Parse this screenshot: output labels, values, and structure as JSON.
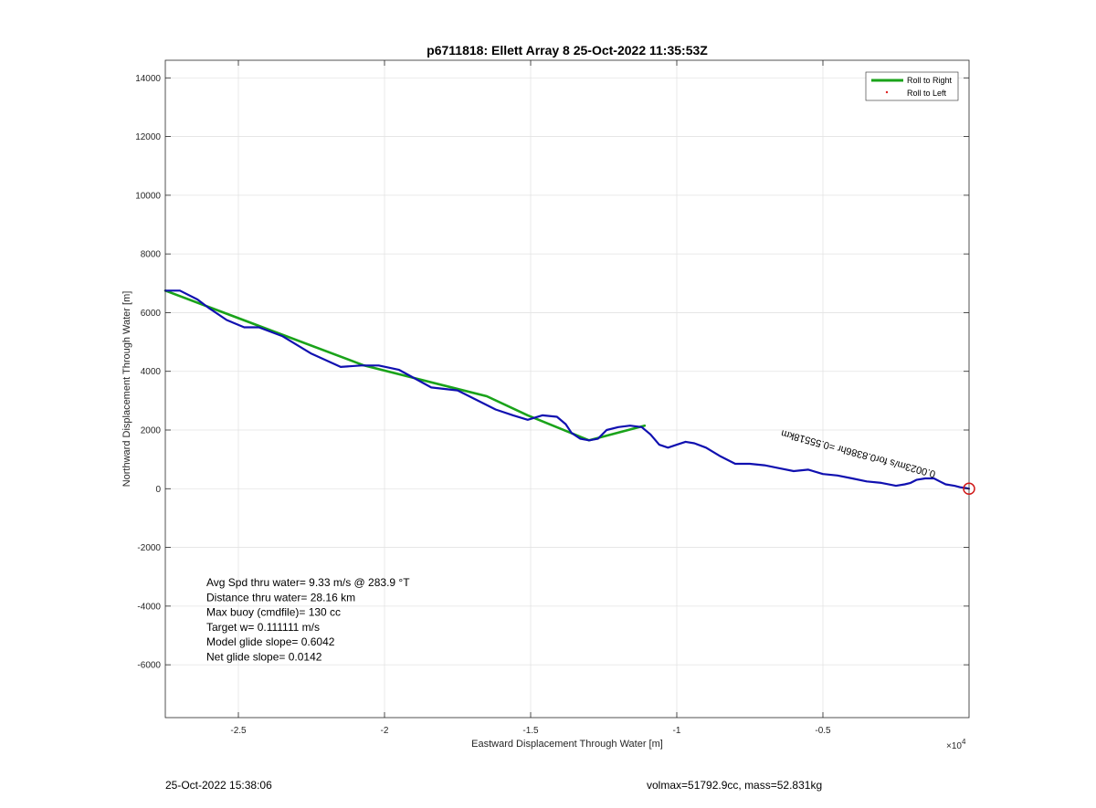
{
  "chart_data": {
    "type": "line",
    "title": "p6711818: Ellett Array 8 25-Oct-2022 11:35:53Z",
    "xlabel": "Eastward Displacement Through Water [m]",
    "ylabel": "Northward Displacement Through Water [m]",
    "x_exponent_label": "×10",
    "x_exponent_power": "4",
    "xlim": [
      -27500,
      0
    ],
    "ylim": [
      -7800,
      14600
    ],
    "xticks": [
      -25000,
      -20000,
      -15000,
      -10000,
      -5000
    ],
    "xtick_labels": [
      "-2.5",
      "-2",
      "-1.5",
      "-1",
      "-0.5"
    ],
    "yticks": [
      -6000,
      -4000,
      -2000,
      0,
      2000,
      4000,
      6000,
      8000,
      10000,
      12000,
      14000
    ],
    "ytick_labels": [
      "-6000",
      "-4000",
      "-2000",
      "0",
      "2000",
      "4000",
      "6000",
      "8000",
      "10000",
      "12000",
      "14000"
    ],
    "grid": true,
    "legend_position": "top-right",
    "legend": [
      {
        "label": "Roll to Right",
        "color": "#1aa31a",
        "style": "line"
      },
      {
        "label": "Roll to Left",
        "color": "#e02020",
        "style": "dot"
      }
    ],
    "series": [
      {
        "name": "Roll to Right",
        "color": "#1aa31a",
        "x": [
          -27500,
          -20700,
          -16500,
          -15100,
          -13000,
          -11100
        ],
        "y": [
          6750,
          4200,
          3150,
          2500,
          1650,
          2150
        ]
      },
      {
        "color": "#1010b0",
        "x": [
          -27500,
          -27000,
          -26400,
          -26000,
          -25400,
          -24800,
          -24300,
          -23500,
          -22500,
          -21500,
          -20800,
          -20200,
          -19500,
          -18400,
          -17500,
          -16800,
          -16200,
          -15600,
          -15100,
          -14600,
          -14100,
          -13800,
          -13600,
          -13300,
          -13000,
          -12700,
          -12400,
          -12000,
          -11600,
          -11200,
          -10900,
          -10600,
          -10300,
          -10000,
          -9700,
          -9400,
          -9000,
          -8500,
          -8000,
          -7500,
          -7000,
          -6500,
          -6000,
          -5500,
          -5000,
          -4500,
          -4000,
          -3500,
          -3000,
          -2500,
          -2200,
          -2000,
          -1800,
          -1500,
          -1200,
          -1000,
          -800,
          -500,
          -300,
          -100,
          0
        ],
        "y": [
          6750,
          6750,
          6450,
          6150,
          5750,
          5500,
          5500,
          5200,
          4600,
          4150,
          4200,
          4200,
          4050,
          3450,
          3350,
          3000,
          2700,
          2500,
          2350,
          2500,
          2450,
          2200,
          1900,
          1700,
          1650,
          1700,
          2000,
          2100,
          2150,
          2100,
          1850,
          1500,
          1400,
          1500,
          1600,
          1550,
          1400,
          1100,
          850,
          850,
          800,
          700,
          600,
          650,
          500,
          450,
          350,
          250,
          200,
          100,
          150,
          200,
          300,
          350,
          350,
          250,
          150,
          100,
          50,
          20,
          0
        ]
      }
    ],
    "annotations": [
      {
        "text": "0.0023m/s for0.8386hr =0.55518km",
        "x": -6400,
        "y": 2000,
        "rotation": 195
      }
    ],
    "stats_lines": [
      "Avg Spd thru water=  9.33 m/s @ 283.9 °T",
      "Distance thru water= 28.16 km",
      "Max buoy (cmdfile)= 130 cc",
      "Target w= 0.111111 m/s",
      "Model glide slope= 0.6042",
      "Net glide slope= 0.0142"
    ]
  },
  "footer": {
    "timestamp": "25-Oct-2022 15:38:06",
    "mass_info": "volmax=51792.9cc, mass=52.831kg"
  }
}
